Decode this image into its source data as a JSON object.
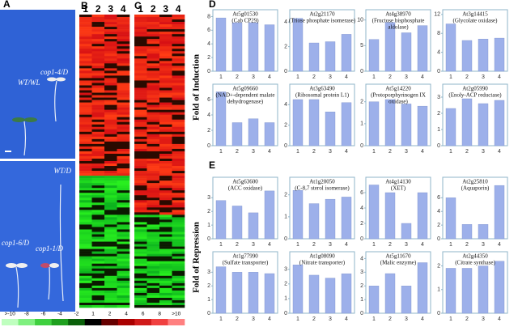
{
  "panel_letters": [
    "A",
    "B",
    "C",
    "D",
    "E"
  ],
  "photo_labels": [
    "WT/WL",
    "cop1-4/D",
    "WT/D",
    "cop1-6/D",
    "cop1-1/D"
  ],
  "heatmap_columns": [
    "1",
    "2",
    "3",
    "4"
  ],
  "color_scale": [
    ">-10",
    "-8",
    "-6",
    "-4",
    "-2",
    "1",
    "2",
    "4",
    "6",
    "8",
    ">10"
  ],
  "axis_titles": [
    "Fold of Induction",
    "Fold of Repression"
  ],
  "chart_data": [
    {
      "type": "bar",
      "title": "At5g01530",
      "subtitle": [
        "(Cab CP29)"
      ],
      "categories": [
        "1",
        "2",
        "3",
        "4"
      ],
      "values": [
        7.8,
        7.1,
        7.1,
        6.8
      ],
      "ylim": [
        0,
        9
      ],
      "yticks": [
        0,
        2,
        4,
        6,
        8
      ],
      "color": "#9db0ea"
    },
    {
      "type": "bar",
      "title": "At2g21170",
      "subtitle": [
        "(Triose phosphate isomerase)"
      ],
      "categories": [
        "1",
        "2",
        "3",
        "4"
      ],
      "values": [
        4.3,
        2.3,
        2.4,
        3.0
      ],
      "ylim": [
        0,
        5
      ],
      "yticks": [
        0,
        2,
        4
      ],
      "color": "#9db0ea"
    },
    {
      "type": "bar",
      "title": "At4g38970",
      "subtitle": [
        "(Fructose bisphosphate",
        "aldolase)"
      ],
      "categories": [
        "1",
        "2",
        "3",
        "4"
      ],
      "values": [
        6.2,
        9.5,
        7.5,
        8.9
      ],
      "ylim": [
        0,
        12
      ],
      "yticks": [
        0,
        5,
        10
      ],
      "color": "#9db0ea"
    },
    {
      "type": "bar",
      "title": "At3g14415",
      "subtitle": [
        "(Glycolate oxidase)"
      ],
      "categories": [
        "1",
        "2",
        "3",
        "4"
      ],
      "values": [
        10,
        6.5,
        6.8,
        7
      ],
      "ylim": [
        0,
        13
      ],
      "yticks": [
        0,
        4,
        8,
        12
      ],
      "color": "#9db0ea"
    },
    {
      "type": "bar",
      "title": "At5g09660",
      "subtitle": [
        "(NAD+-dependent malate",
        "dehydrogenase)"
      ],
      "categories": [
        "1",
        "2",
        "3",
        "4"
      ],
      "values": [
        7.0,
        3.0,
        3.5,
        3.0
      ],
      "ylim": [
        0,
        8
      ],
      "yticks": [
        0,
        2,
        4,
        6
      ],
      "color": "#9db0ea"
    },
    {
      "type": "bar",
      "title": "At3g63490",
      "subtitle": [
        "(Ribosomal protein L1)"
      ],
      "categories": [
        "1",
        "2",
        "3",
        "4"
      ],
      "values": [
        4.5,
        4.5,
        3.3,
        4.2
      ],
      "ylim": [
        0,
        6
      ],
      "yticks": [
        0,
        2,
        4
      ],
      "color": "#9db0ea"
    },
    {
      "type": "bar",
      "title": "At5g14220",
      "subtitle": [
        "(Protoporphyrinogen IX",
        "oxidase)"
      ],
      "categories": [
        "1",
        "2",
        "3",
        "4"
      ],
      "values": [
        2.0,
        2.1,
        1.9,
        1.8
      ],
      "ylim": [
        0,
        2.8
      ],
      "yticks": [
        0,
        1,
        2
      ],
      "color": "#9db0ea"
    },
    {
      "type": "bar",
      "title": "At2g05990",
      "subtitle": [
        "(Enoly-ACP reductase)"
      ],
      "categories": [
        "1",
        "2",
        "3",
        "4"
      ],
      "values": [
        2.3,
        2.9,
        2.6,
        2.8
      ],
      "ylim": [
        0,
        3.8
      ],
      "yticks": [
        0,
        1,
        2,
        3
      ],
      "color": "#9db0ea"
    },
    {
      "type": "bar",
      "title": "At5g63600",
      "subtitle": [
        "(ACC oxidase)"
      ],
      "categories": [
        "1",
        "2",
        "3",
        "4"
      ],
      "values": [
        2.8,
        2.4,
        1.9,
        3.5
      ],
      "ylim": [
        0,
        4.5
      ],
      "yticks": [
        0,
        1,
        2,
        3
      ],
      "color": "#9db0ea"
    },
    {
      "type": "bar",
      "title": "At1g20050",
      "subtitle": [
        "(C-8,7 sterol isomerase)"
      ],
      "categories": [
        "1",
        "2",
        "3",
        "4"
      ],
      "values": [
        2.2,
        1.6,
        1.8,
        1.9
      ],
      "ylim": [
        0,
        2.8
      ],
      "yticks": [
        0,
        1,
        2
      ],
      "color": "#9db0ea"
    },
    {
      "type": "bar",
      "title": "At4g14130",
      "subtitle": [
        "(XET)"
      ],
      "categories": [
        "1",
        "2",
        "3",
        "4"
      ],
      "values": [
        7.0,
        6.0,
        2.0,
        6.0
      ],
      "ylim": [
        0,
        8
      ],
      "yticks": [
        0,
        2,
        4,
        6
      ],
      "color": "#9db0ea"
    },
    {
      "type": "bar",
      "title": "At2g25810",
      "subtitle": [
        "(Aquaporin)"
      ],
      "categories": [
        "1",
        "2",
        "3",
        "4"
      ],
      "values": [
        6.0,
        2.1,
        2.1,
        7.8
      ],
      "ylim": [
        0,
        9
      ],
      "yticks": [
        0,
        2,
        4,
        6
      ],
      "color": "#9db0ea"
    },
    {
      "type": "bar",
      "title": "At1g77990",
      "subtitle": [
        "(Sulfate transporter)"
      ],
      "categories": [
        "1",
        "2",
        "3",
        "4"
      ],
      "values": [
        3.4,
        3.0,
        3.0,
        2.9
      ],
      "ylim": [
        0,
        4.5
      ],
      "yticks": [
        0,
        1,
        2,
        3
      ],
      "color": "#9db0ea"
    },
    {
      "type": "bar",
      "title": "At1g08090",
      "subtitle": [
        "(Nitrate transporter)"
      ],
      "categories": [
        "1",
        "2",
        "3",
        "4"
      ],
      "values": [
        3.3,
        2.6,
        2.4,
        2.7
      ],
      "ylim": [
        0,
        4.2
      ],
      "yticks": [
        0,
        1,
        2,
        3
      ],
      "color": "#9db0ea"
    },
    {
      "type": "bar",
      "title": "At5g11670",
      "subtitle": [
        "(Malic enzyme)"
      ],
      "categories": [
        "1",
        "2",
        "3",
        "4"
      ],
      "values": [
        2.0,
        2.9,
        2.0,
        3.7
      ],
      "ylim": [
        0,
        4.5
      ],
      "yticks": [
        0,
        1,
        2,
        3,
        4
      ],
      "color": "#9db0ea"
    },
    {
      "type": "bar",
      "title": "At2g44350",
      "subtitle": [
        "(Citrate synthase)"
      ],
      "categories": [
        "1",
        "2",
        "3",
        "4"
      ],
      "values": [
        1.9,
        1.9,
        2.0,
        2.2
      ],
      "ylim": [
        0,
        2.6
      ],
      "yticks": [
        0,
        1,
        2
      ],
      "color": "#9db0ea"
    }
  ]
}
